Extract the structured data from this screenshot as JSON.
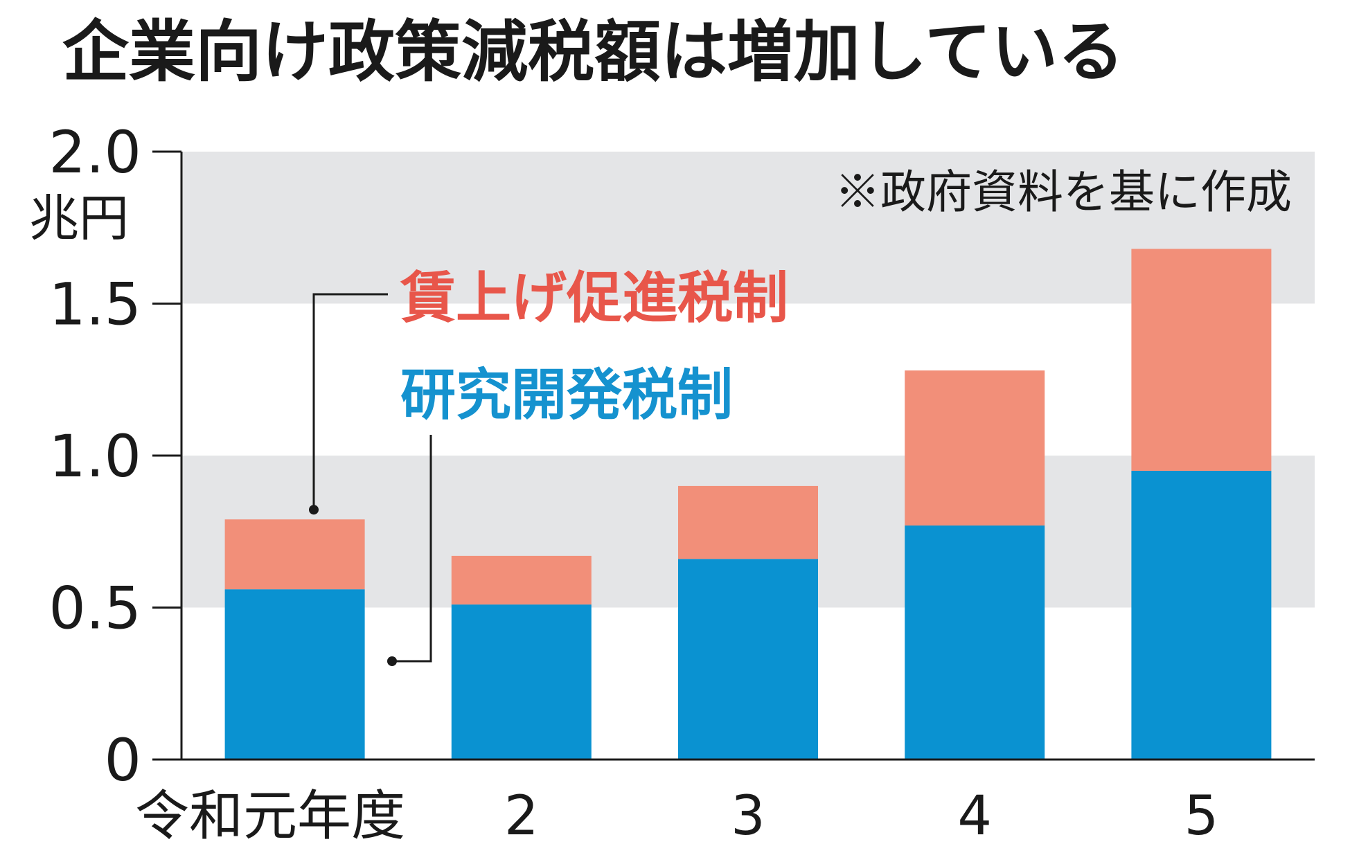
{
  "chart_data": {
    "type": "bar",
    "stacked": true,
    "title": "企業向け政策減税額は増加している",
    "note": "※政府資料を基に作成",
    "ylabel": "兆円",
    "ylim": [
      0,
      2.0
    ],
    "yticks": [
      "0",
      "0.5",
      "1.0",
      "1.5",
      "2.0"
    ],
    "categories": [
      "令和元年度",
      "2",
      "3",
      "4",
      "5"
    ],
    "series": [
      {
        "name": "研究開発税制",
        "color": "#0a92d1",
        "values": [
          0.56,
          0.51,
          0.66,
          0.77,
          0.95
        ]
      },
      {
        "name": "賃上げ促進税制",
        "color": "#f28f79",
        "values": [
          0.23,
          0.16,
          0.24,
          0.51,
          0.73
        ]
      }
    ],
    "grid_bands": true,
    "band_color": "#e4e5e7",
    "legend_position": "upper-left, with leader lines to the first bar"
  }
}
